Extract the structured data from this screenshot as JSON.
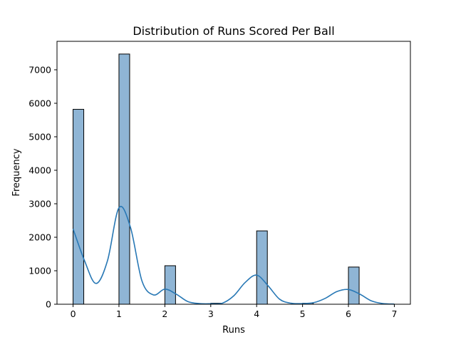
{
  "chart_data": {
    "type": "bar",
    "title": "Distribution of Runs Scored Per Ball",
    "xlabel": "Runs",
    "ylabel": "Frequency",
    "xlim": [
      -0.35,
      7.35
    ],
    "ylim": [
      0,
      7850
    ],
    "xticks": [
      0,
      1,
      2,
      3,
      4,
      5,
      6,
      7
    ],
    "yticks": [
      0,
      1000,
      2000,
      3000,
      4000,
      5000,
      6000,
      7000
    ],
    "bin_width": 0.233,
    "bars": [
      {
        "x": 0,
        "value": 5820
      },
      {
        "x": 1,
        "value": 7470
      },
      {
        "x": 2,
        "value": 1150
      },
      {
        "x": 3,
        "value": 30
      },
      {
        "x": 4,
        "value": 2190
      },
      {
        "x": 5,
        "value": 30
      },
      {
        "x": 6,
        "value": 1110
      }
    ],
    "kde": {
      "x": [
        0,
        0.25,
        0.5,
        0.75,
        1,
        1.25,
        1.5,
        1.75,
        2,
        2.25,
        2.5,
        2.75,
        3,
        3.25,
        3.5,
        3.75,
        4,
        4.25,
        4.5,
        4.75,
        5,
        5.25,
        5.5,
        5.75,
        6,
        6.25,
        6.5,
        6.75,
        7
      ],
      "y": [
        2250,
        1300,
        620,
        1300,
        2880,
        2300,
        700,
        280,
        450,
        300,
        80,
        20,
        15,
        30,
        250,
        650,
        870,
        550,
        150,
        30,
        20,
        50,
        180,
        380,
        440,
        300,
        100,
        20,
        5
      ]
    },
    "colors": {
      "bar_fill": "#8fb5d5",
      "bar_edge": "#000000",
      "kde_line": "#2878b5"
    },
    "grid": false,
    "legend": "none"
  }
}
